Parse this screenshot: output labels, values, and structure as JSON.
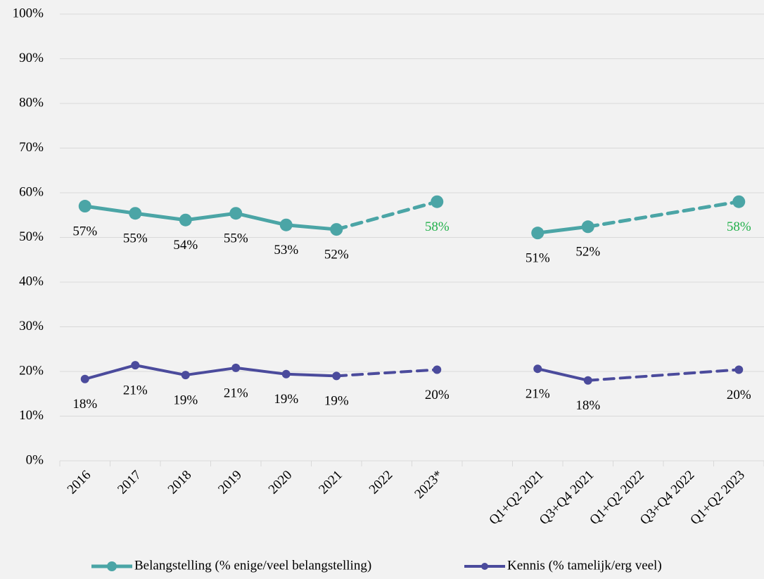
{
  "chart_data": {
    "type": "line",
    "categories": [
      "2016",
      "2017",
      "2018",
      "2019",
      "2020",
      "2021",
      "2022",
      "2023*",
      null,
      "Q1+Q2 2021",
      "Q3+Q4 2021",
      "Q1+Q2 2022",
      "Q3+Q4 2022",
      "Q1+Q2 2023"
    ],
    "series": [
      {
        "name": "Belangstelling (% enige/veel belangstelling)",
        "color": "#4ba5a6",
        "values": [
          57.0,
          55.4,
          53.9,
          55.4,
          52.8,
          51.8,
          null,
          58.0,
          null,
          51.0,
          52.4,
          null,
          null,
          58.0
        ],
        "value_labels": [
          "57%",
          "55%",
          "54%",
          "55%",
          "53%",
          "52%",
          null,
          "58%",
          null,
          "51%",
          "52%",
          null,
          null,
          "58%"
        ],
        "value_label_colors": [
          "#000000",
          "#000000",
          "#000000",
          "#000000",
          "#000000",
          "#000000",
          null,
          "#22b04b",
          null,
          "#000000",
          "#000000",
          null,
          null,
          "#22b04b"
        ]
      },
      {
        "name": "Kennis (% tamelijk/erg veel)",
        "color": "#4b4b9c",
        "values": [
          18.3,
          21.4,
          19.2,
          20.8,
          19.4,
          19.0,
          null,
          20.4,
          null,
          20.6,
          18.0,
          null,
          null,
          20.4
        ],
        "value_labels": [
          "18%",
          "21%",
          "19%",
          "21%",
          "19%",
          "19%",
          null,
          "20%",
          null,
          "21%",
          "18%",
          null,
          null,
          "20%"
        ],
        "value_label_colors": [
          "#000000",
          "#000000",
          "#000000",
          "#000000",
          "#000000",
          "#000000",
          null,
          "#000000",
          null,
          "#000000",
          "#000000",
          null,
          null,
          "#000000"
        ]
      }
    ],
    "ylim": [
      0,
      100
    ],
    "yticks": [
      {
        "value": 0,
        "label": "0%"
      },
      {
        "value": 10,
        "label": "10%"
      },
      {
        "value": 20,
        "label": "20%"
      },
      {
        "value": 30,
        "label": "30%"
      },
      {
        "value": 40,
        "label": "40%"
      },
      {
        "value": 50,
        "label": "50%"
      },
      {
        "value": 60,
        "label": "60%"
      },
      {
        "value": 70,
        "label": "70%"
      },
      {
        "value": 80,
        "label": "80%"
      },
      {
        "value": 90,
        "label": "90%"
      },
      {
        "value": 100,
        "label": "100%"
      }
    ],
    "grid": true,
    "legend": "bottom"
  }
}
